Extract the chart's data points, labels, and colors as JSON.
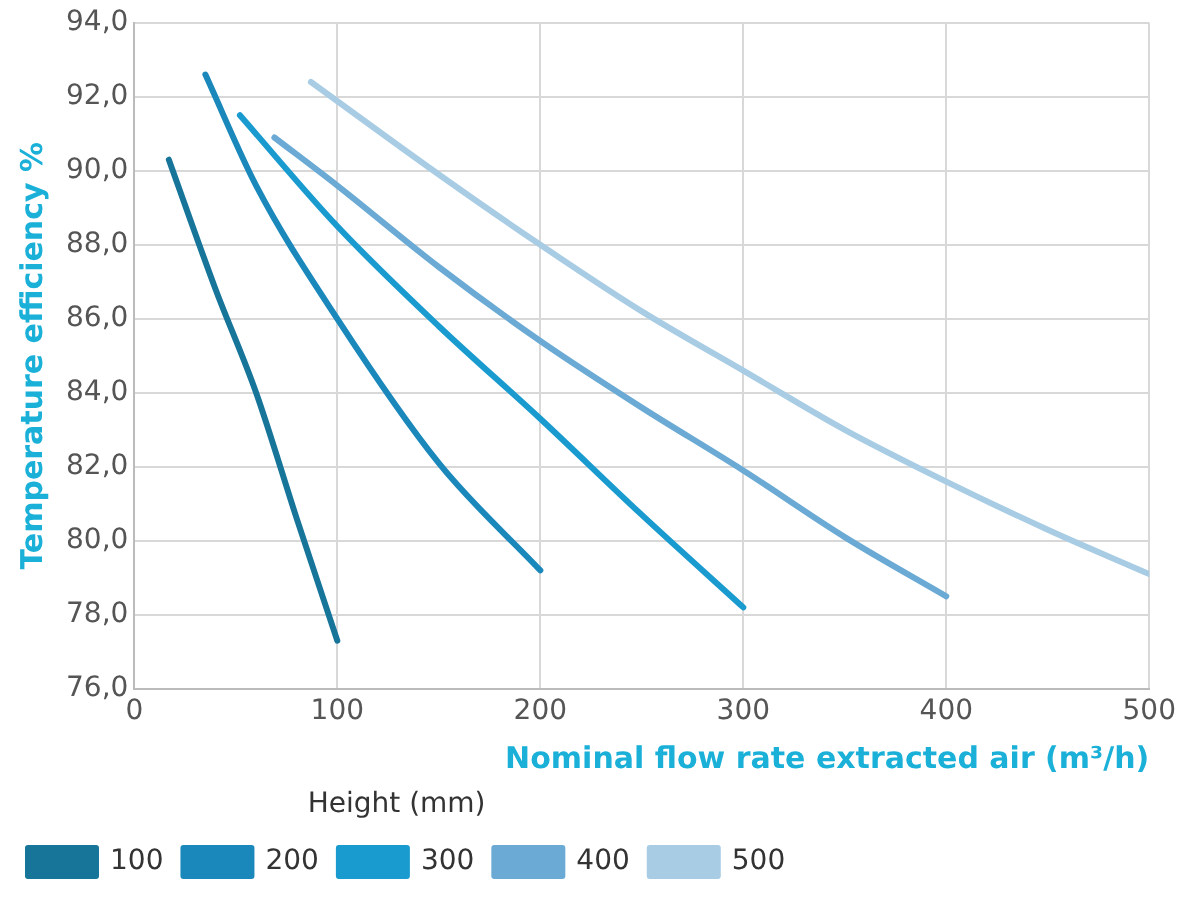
{
  "chart_data": {
    "type": "line",
    "xlabel": "Nominal flow rate extracted air (m³/h)",
    "ylabel": "Temperature efficiency %",
    "legend_title": "Height (mm)",
    "legend": "bottom",
    "grid": true,
    "marker": "none",
    "line_style": "solid",
    "xlim": [
      0,
      500
    ],
    "xticks": [
      0,
      100,
      200,
      300,
      400,
      500
    ],
    "ylim": [
      76,
      94
    ],
    "yticks": [
      {
        "value": 76,
        "label": "76,0"
      },
      {
        "value": 78,
        "label": "78,0"
      },
      {
        "value": 80,
        "label": "80,0"
      },
      {
        "value": 82,
        "label": "82,0"
      },
      {
        "value": 84,
        "label": "84,0"
      },
      {
        "value": 86,
        "label": "86,0"
      },
      {
        "value": 88,
        "label": "88,0"
      },
      {
        "value": 90,
        "label": "90,0"
      },
      {
        "value": 92,
        "label": "92,0"
      },
      {
        "value": 94,
        "label": "94,0"
      }
    ],
    "series": [
      {
        "name": "100",
        "color": "#17759a",
        "x": [
          17,
          40,
          60,
          80,
          100
        ],
        "values": [
          90.3,
          86.8,
          84.0,
          80.6,
          77.3
        ]
      },
      {
        "name": "200",
        "color": "#1a88bb",
        "x": [
          35,
          60,
          100,
          150,
          200
        ],
        "values": [
          92.6,
          89.6,
          86.0,
          82.1,
          79.2
        ]
      },
      {
        "name": "300",
        "color": "#1a9bd0",
        "x": [
          52,
          100,
          150,
          200,
          250,
          300
        ],
        "values": [
          91.5,
          88.5,
          85.8,
          83.3,
          80.7,
          78.2
        ]
      },
      {
        "name": "400",
        "color": "#6aaad4",
        "x": [
          69,
          100,
          150,
          200,
          250,
          300,
          350,
          400
        ],
        "values": [
          90.9,
          89.6,
          87.4,
          85.4,
          83.6,
          81.9,
          80.1,
          78.5
        ]
      },
      {
        "name": "500",
        "color": "#a8cce4",
        "x": [
          87,
          150,
          200,
          250,
          300,
          350,
          400,
          450,
          500
        ],
        "values": [
          92.4,
          89.9,
          88.0,
          86.2,
          84.6,
          83.0,
          81.6,
          80.3,
          79.1
        ]
      }
    ]
  }
}
